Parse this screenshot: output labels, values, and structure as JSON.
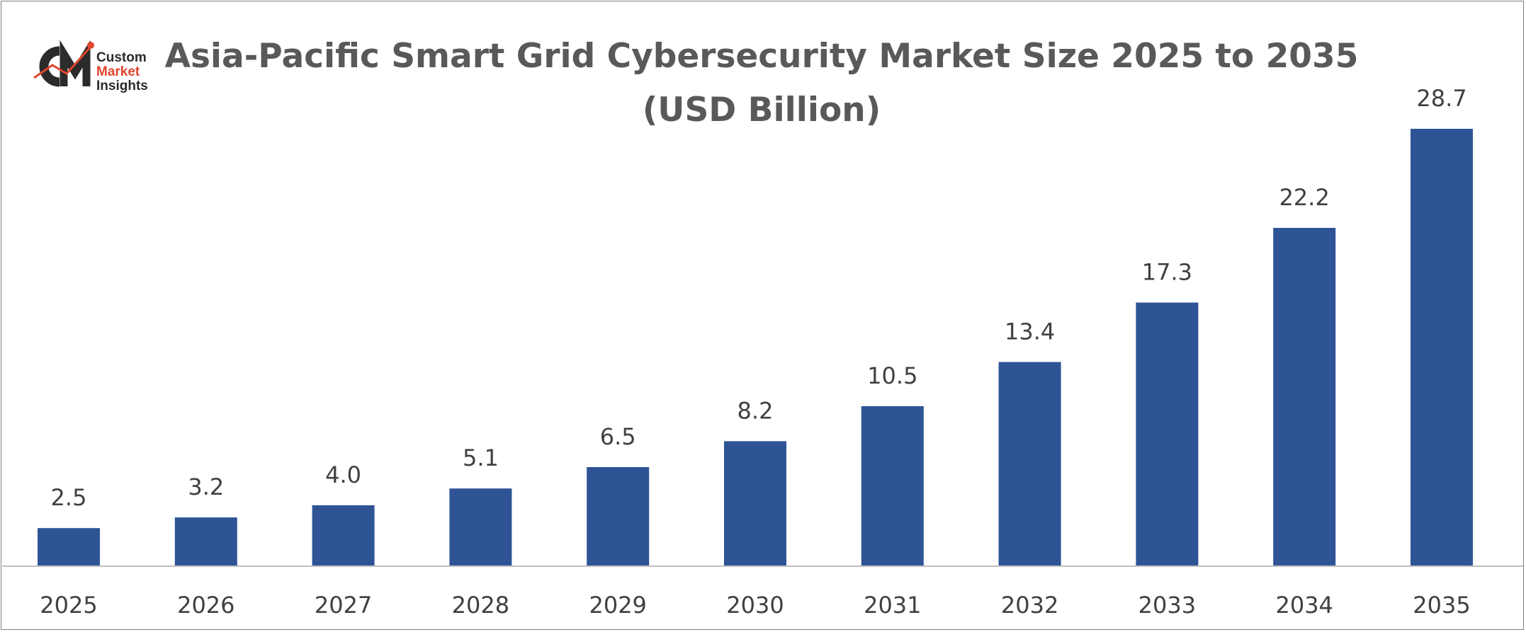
{
  "logo": {
    "mark": "CMI",
    "icon": "cmi-logo-icon",
    "line1": "Custom",
    "line2": "Market",
    "line3": "Insights"
  },
  "chart_data": {
    "type": "bar",
    "title_line1": "Asia-Pacific Smart Grid Cybersecurity Market Size 2025 to 2035",
    "title_line2": "(USD Billion)",
    "xlabel": "",
    "ylabel": "",
    "categories": [
      "2025",
      "2026",
      "2027",
      "2028",
      "2029",
      "2030",
      "2031",
      "2032",
      "2033",
      "2034",
      "2035"
    ],
    "values": [
      2.5,
      3.2,
      4.0,
      5.1,
      6.5,
      8.2,
      10.5,
      13.4,
      17.3,
      22.2,
      28.7
    ],
    "value_labels": [
      "2.5",
      "3.2",
      "4.0",
      "5.1",
      "6.5",
      "8.2",
      "10.5",
      "13.4",
      "17.3",
      "22.2",
      "28.7"
    ],
    "ylim": [
      0,
      28.7
    ],
    "grid": false,
    "legend": "none",
    "bar_color": "#2e5496",
    "axis_color": "#bfbfbf",
    "label_color": "#404040"
  }
}
